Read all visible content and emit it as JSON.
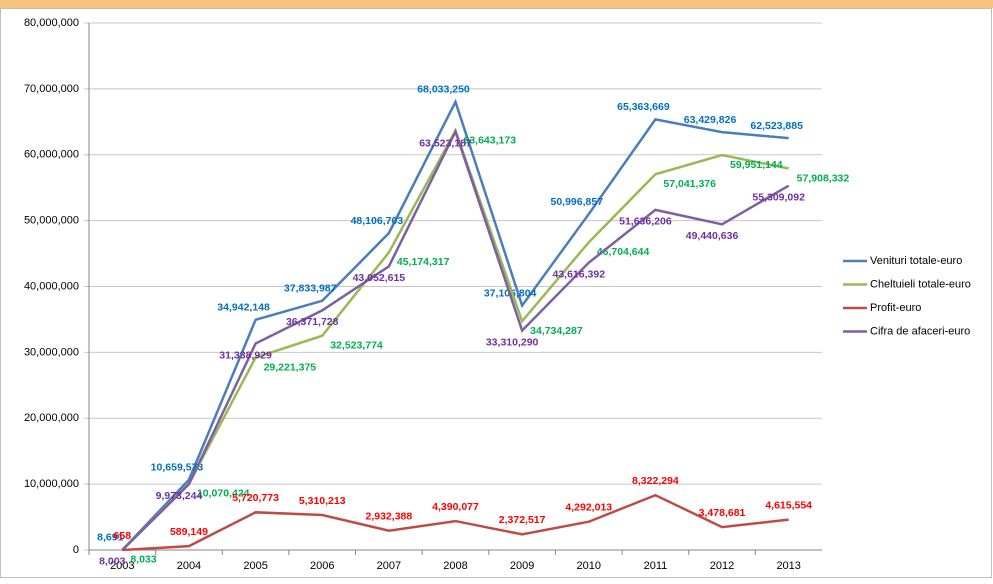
{
  "chart_data": {
    "type": "line",
    "categories": [
      "2003",
      "2004",
      "2005",
      "2006",
      "2007",
      "2008",
      "2009",
      "2010",
      "2011",
      "2012",
      "2013"
    ],
    "ylim": [
      0,
      80000000
    ],
    "yticks": [
      {
        "value": 0,
        "label": "0"
      },
      {
        "value": 10000000,
        "label": "10,000,000"
      },
      {
        "value": 20000000,
        "label": "20,000,000"
      },
      {
        "value": 30000000,
        "label": "30,000,000"
      },
      {
        "value": 40000000,
        "label": "40,000,000"
      },
      {
        "value": 50000000,
        "label": "50,000,000"
      },
      {
        "value": 60000000,
        "label": "60,000,000"
      },
      {
        "value": 70000000,
        "label": "70,000,000"
      },
      {
        "value": 80000000,
        "label": "80,000,000"
      }
    ],
    "grid": true,
    "legend": "right",
    "series": [
      {
        "name": "Venituri totale-euro",
        "color": "#4a7ebb",
        "label_color": "#0070c0",
        "values": [
          8691,
          10659573,
          34942148,
          37833987,
          48106703,
          68033250,
          37106804,
          50996857,
          65363669,
          63429826,
          62523885
        ],
        "value_labels": [
          "8,691",
          "10,659,573",
          "34,942,148",
          "37,833,987",
          "48,106,703",
          "68,033,250",
          "37,106,804",
          "50,996,857",
          "65,363,669",
          "63,429,826",
          "62,523,885"
        ]
      },
      {
        "name": "Cheltuieli totale-euro",
        "color": "#98b954",
        "label_color": "#00b050",
        "values": [
          8033,
          10070424,
          29221375,
          32523774,
          45174317,
          63643173,
          34734287,
          46704644,
          57041376,
          59951144,
          57908332
        ],
        "value_labels": [
          "8,033",
          "10,070,424",
          "29,221,375",
          "32,523,774",
          "45,174,317",
          "63,643,173",
          "34,734,287",
          "46,704,644",
          "57,041,376",
          "59,951,144",
          "57,908,332"
        ]
      },
      {
        "name": "Profit-euro",
        "color": "#be4b48",
        "label_color": "#ff0000",
        "values": [
          658,
          589149,
          5720773,
          5310213,
          2932388,
          4390077,
          2372517,
          4292013,
          8322294,
          3478681,
          4615554
        ],
        "value_labels": [
          "658",
          "589,149",
          "5,720,773",
          "5,310,213",
          "2,932,388",
          "4,390,077",
          "2,372,517",
          "4,292,013",
          "8,322,294",
          "3,478,681",
          "4,615,554"
        ]
      },
      {
        "name": "Cifra de afaceri-euro",
        "color": "#7d60a0",
        "label_color": "#7030a0",
        "values": [
          8003,
          9973244,
          31338929,
          36371728,
          43052615,
          63523187,
          33310290,
          43616392,
          51636206,
          49440636,
          55309092
        ],
        "value_labels": [
          "8,003",
          "9,973,244",
          "31,338,929",
          "36,371,728",
          "43,052,615",
          "63,523,187",
          "33,310,290",
          "43,616,392",
          "51,636,206",
          "49,440,636",
          "55,309,092"
        ]
      }
    ]
  }
}
